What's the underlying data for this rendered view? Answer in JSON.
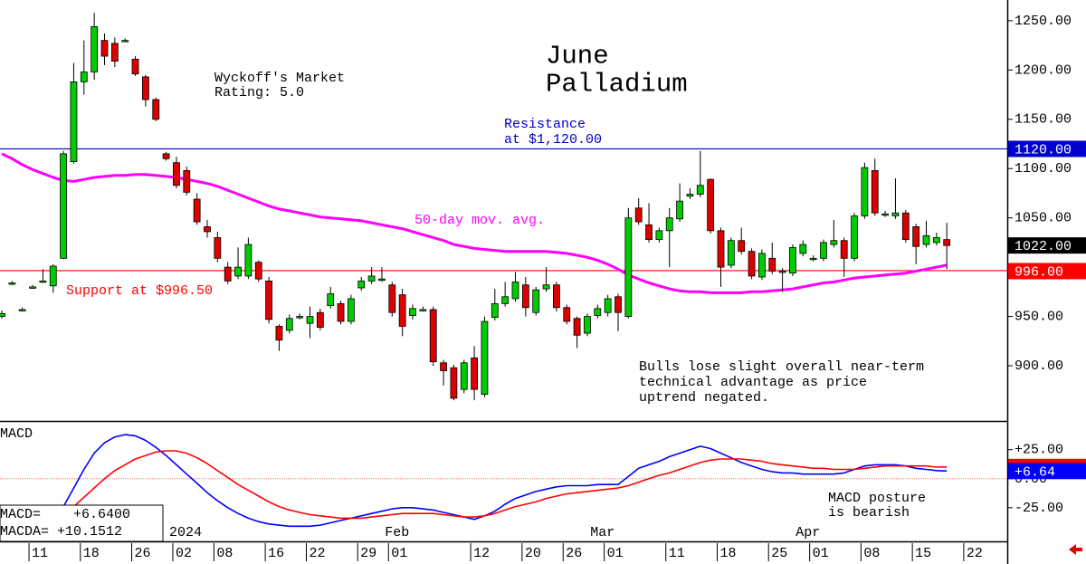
{
  "chart_data": {
    "type": "candlestick",
    "title": [
      "June",
      "Palladium"
    ],
    "rating": [
      "Wyckoff's Market",
      "Rating: 5.0"
    ],
    "resistance_note": [
      "Resistance",
      "at $1,120.00"
    ],
    "support_note": "Support at $996.50",
    "commentary": [
      "Bulls lose slight overall near-term",
      "technical advantage as price",
      "uptrend negated."
    ],
    "categories": [
      null,
      null,
      null,
      "11",
      null,
      null,
      null,
      null,
      "18",
      null,
      null,
      null,
      null,
      "26",
      null,
      null,
      null,
      "02",
      null,
      null,
      null,
      "08",
      null,
      null,
      null,
      null,
      "16",
      null,
      null,
      null,
      "22",
      null,
      null,
      null,
      null,
      "29",
      null,
      null,
      "01",
      null,
      null,
      null,
      null,
      null,
      null,
      null,
      "12",
      null,
      null,
      null,
      null,
      "20",
      null,
      null,
      null,
      "26",
      null,
      null,
      null,
      "01",
      null,
      null,
      null,
      null,
      null,
      "11",
      null,
      null,
      null,
      null,
      "18",
      null,
      null,
      null,
      null,
      "25",
      null,
      null,
      null,
      "01",
      null,
      null,
      null,
      null,
      "08",
      null,
      null,
      null,
      null,
      "15",
      null,
      null,
      null,
      null,
      "22"
    ],
    "months": [
      null,
      null,
      null,
      null,
      null,
      null,
      null,
      null,
      null,
      null,
      null,
      null,
      null,
      null,
      null,
      null,
      null,
      "2024",
      null,
      null,
      null,
      null,
      null,
      null,
      null,
      null,
      null,
      null,
      null,
      null,
      null,
      null,
      null,
      null,
      null,
      null,
      null,
      null,
      "Feb",
      null,
      null,
      null,
      null,
      null,
      null,
      null,
      null,
      null,
      null,
      null,
      null,
      null,
      null,
      null,
      null,
      null,
      null,
      null,
      "Mar",
      null,
      null,
      null,
      null,
      null,
      null,
      null,
      null,
      null,
      null,
      null,
      null,
      null,
      null,
      null,
      null,
      null,
      null,
      null,
      "Apr",
      null,
      null,
      null,
      null,
      null,
      null,
      null,
      null,
      null,
      null,
      null,
      null,
      null,
      null,
      null
    ],
    "open": [
      950,
      984,
      957,
      980,
      986,
      981,
      1009,
      1107,
      1188,
      1198,
      1230,
      1227,
      1230,
      1211,
      1193,
      1170,
      1115,
      1106,
      1098,
      1069,
      1041,
      1030,
      1000,
      991,
      991,
      1005,
      986,
      940,
      936,
      950,
      943,
      954,
      961,
      963,
      945,
      979,
      986,
      988,
      982,
      972,
      951,
      957,
      957,
      903,
      898,
      876,
      908,
      871,
      949,
      963,
      968,
      982,
      954,
      978,
      982,
      959,
      948,
      933,
      951,
      954,
      970,
      950,
      1060,
      1043,
      1028,
      1037,
      1049,
      1072,
      1074,
      1089,
      1037,
      1002,
      1027,
      1016,
      990,
      1009,
      996,
      994,
      1014,
      1009,
      1009,
      1023,
      1027,
      1009,
      1052,
      1098,
      1054,
      1052,
      1055,
      1041,
      1023,
      1025,
      1028,
      null
    ],
    "high": [
      956,
      986,
      959,
      982,
      998,
      1003,
      1118,
      1207,
      1230,
      1258,
      1237,
      1233,
      1232,
      1214,
      1195,
      1172,
      1117,
      1112,
      1102,
      1075,
      1048,
      1036,
      1005,
      1020,
      1030,
      1007,
      990,
      942,
      952,
      953,
      960,
      958,
      980,
      966,
      972,
      990,
      1000,
      1000,
      985,
      978,
      962,
      960,
      960,
      906,
      901,
      906,
      920,
      950,
      978,
      985,
      995,
      990,
      980,
      1000,
      985,
      962,
      950,
      953,
      962,
      972,
      973,
      1060,
      1070,
      1065,
      1040,
      1060,
      1085,
      1080,
      1118,
      1090,
      1040,
      1030,
      1040,
      1019,
      1018,
      1025,
      999,
      1023,
      1027,
      1012,
      1028,
      1048,
      1030,
      1055,
      1106,
      1110,
      1057,
      1090,
      1058,
      1044,
      1047,
      1035,
      1045,
      null
    ],
    "low": [
      948,
      982,
      955,
      978,
      984,
      974,
      1008,
      1105,
      1175,
      1190,
      1205,
      1203,
      1228,
      1194,
      1163,
      1148,
      1108,
      1080,
      1073,
      1043,
      1030,
      1005,
      983,
      988,
      988,
      985,
      943,
      915,
      933,
      947,
      928,
      936,
      958,
      942,
      942,
      976,
      983,
      985,
      950,
      930,
      947,
      955,
      900,
      880,
      865,
      872,
      865,
      868,
      946,
      960,
      965,
      950,
      951,
      975,
      955,
      942,
      918,
      930,
      948,
      950,
      935,
      948,
      1043,
      1025,
      1025,
      1000,
      1046,
      1069,
      1071,
      1034,
      980,
      999,
      1013,
      988,
      987,
      993,
      975,
      991,
      1011,
      1006,
      1006,
      1020,
      990,
      1006,
      1049,
      1052,
      1051,
      1049,
      1025,
      1003,
      1020,
      1022,
      998,
      null
    ],
    "close": [
      953,
      984,
      957,
      980,
      986,
      1001,
      1115,
      1188,
      1198,
      1244,
      1214,
      1209,
      1230,
      1196,
      1170,
      1150,
      1110,
      1083,
      1076,
      1046,
      1036,
      1009,
      986,
      1000,
      1023,
      988,
      947,
      926,
      948,
      950,
      950,
      939,
      973,
      945,
      968,
      986,
      991,
      988,
      954,
      940,
      958,
      957,
      904,
      895,
      867,
      903,
      876,
      945,
      963,
      970,
      985,
      959,
      977,
      982,
      959,
      945,
      931,
      950,
      958,
      968,
      954,
      1050,
      1046,
      1028,
      1037,
      1050,
      1067,
      1074,
      1083,
      1037,
      1000,
      1027,
      1016,
      991,
      1014,
      996,
      996,
      1020,
      1023,
      1009,
      1025,
      1027,
      1009,
      1052,
      1101,
      1055,
      1054,
      1055,
      1028,
      1021,
      1032,
      1030,
      1022,
      null
    ],
    "up_color": "#00cc00",
    "down_color": "#dd0000",
    "moving_average": {
      "name": "50-day mov. avg.",
      "color": "#ff00ff",
      "values": [
        1115,
        1110,
        1104,
        1099,
        1095,
        1091,
        1088,
        1087,
        1089,
        1091,
        1092,
        1093,
        1093,
        1094,
        1094,
        1093,
        1092,
        1091,
        1089,
        1087,
        1085,
        1082,
        1078,
        1074,
        1070,
        1066,
        1062,
        1059,
        1057,
        1055,
        1053,
        1051,
        1050,
        1049,
        1048,
        1047,
        1045,
        1043,
        1041,
        1039,
        1036,
        1033,
        1030,
        1027,
        1023,
        1021,
        1019,
        1018,
        1017,
        1016,
        1016,
        1016,
        1016,
        1016,
        1015,
        1014,
        1012,
        1010,
        1007,
        1003,
        998,
        992,
        988,
        984,
        981,
        978,
        976,
        975,
        975,
        974,
        974,
        974,
        974,
        975,
        975,
        976,
        977,
        978,
        980,
        982,
        984,
        985,
        987,
        989,
        990,
        991,
        992,
        993,
        994,
        996,
        998,
        1000,
        1002,
        null
      ]
    },
    "levels": [
      {
        "value": 1120,
        "color": "#0000cc"
      },
      {
        "value": 996.5,
        "color": "#ff0000"
      }
    ],
    "markers": [
      {
        "value": 996,
        "label": "996.00",
        "color": "#ff0000"
      },
      {
        "value": 1120,
        "label": "1120.00",
        "color": "#0000cc"
      },
      {
        "value": 1022,
        "label": "1022.00",
        "color": "#000000"
      }
    ],
    "ylim": [
      844,
      1271
    ],
    "yticks": [
      {
        "value": 900,
        "label": "900.00"
      },
      {
        "value": 950,
        "label": "950.00"
      },
      {
        "value": 1050,
        "label": "1050.00"
      },
      {
        "value": 1100,
        "label": "1100.00"
      },
      {
        "value": 1150,
        "label": "1150.00"
      },
      {
        "value": 1200,
        "label": "1200.00"
      },
      {
        "value": 1250,
        "label": "1250.00"
      }
    ],
    "macd": {
      "label": "MACD",
      "note": [
        "MACD posture",
        "is bearish"
      ],
      "readouts": [
        "MACD=    +6.6400",
        "MACDA= +10.1512"
      ],
      "ylim": [
        -54,
        49
      ],
      "yticks": [
        {
          "value": -25,
          "label": "-25.00"
        },
        {
          "value": 0,
          "label": "0.00"
        },
        {
          "value": 25,
          "label": "+25.00"
        }
      ],
      "series": [
        {
          "name": "MACD",
          "color": "#0000ff",
          "values": [
            null,
            null,
            null,
            null,
            null,
            null,
            -24,
            -8,
            8,
            22,
            31,
            36,
            38,
            37,
            33,
            27,
            20,
            12,
            4,
            -4,
            -12,
            -19,
            -25,
            -30,
            -34,
            -37,
            -39,
            -40,
            -41,
            -41,
            -41,
            -40,
            -38,
            -36,
            -34,
            -32,
            -30,
            -28,
            -26,
            -25,
            -25,
            -26,
            -27,
            -29,
            -31,
            -33,
            -35,
            -32,
            -28,
            -22,
            -17,
            -14,
            -11,
            -9,
            -7,
            -6,
            -6,
            -6,
            -5,
            -5,
            -5,
            2,
            9,
            12,
            15,
            19,
            22,
            25,
            28,
            26,
            22,
            18,
            14,
            11,
            8,
            6,
            5,
            5,
            4,
            4,
            4,
            4,
            5,
            8,
            11,
            12,
            12,
            12,
            11,
            9,
            8,
            7,
            6.64,
            null
          ]
        },
        {
          "name": "MACDA",
          "color": "#ff0000",
          "values": [
            null,
            null,
            null,
            null,
            null,
            null,
            null,
            -24,
            -16,
            -8,
            0,
            7,
            12,
            17,
            20,
            23,
            24,
            24,
            22,
            18,
            13,
            7,
            1,
            -5,
            -10,
            -15,
            -20,
            -24,
            -27,
            -29,
            -31,
            -32,
            -33,
            -34,
            -34,
            -34,
            -33,
            -32,
            -31,
            -30,
            -30,
            -30,
            -30,
            -31,
            -32,
            -33,
            -33,
            -32,
            -30,
            -27,
            -24,
            -22,
            -20,
            -17,
            -15,
            -13,
            -12,
            -11,
            -10,
            -9,
            -8,
            -6,
            -3,
            0,
            3,
            5,
            8,
            11,
            14,
            16,
            17,
            17,
            17,
            16,
            15,
            13,
            12,
            11,
            10,
            9,
            9,
            8,
            8,
            8,
            9,
            10,
            11,
            11,
            11,
            11,
            11,
            10,
            10.1512,
            null
          ]
        }
      ],
      "markers": [
        {
          "value": 10.1512,
          "color": "#ff0000"
        },
        {
          "value": 6.64,
          "label": "+6.64",
          "color": "#0000ff"
        }
      ]
    }
  }
}
